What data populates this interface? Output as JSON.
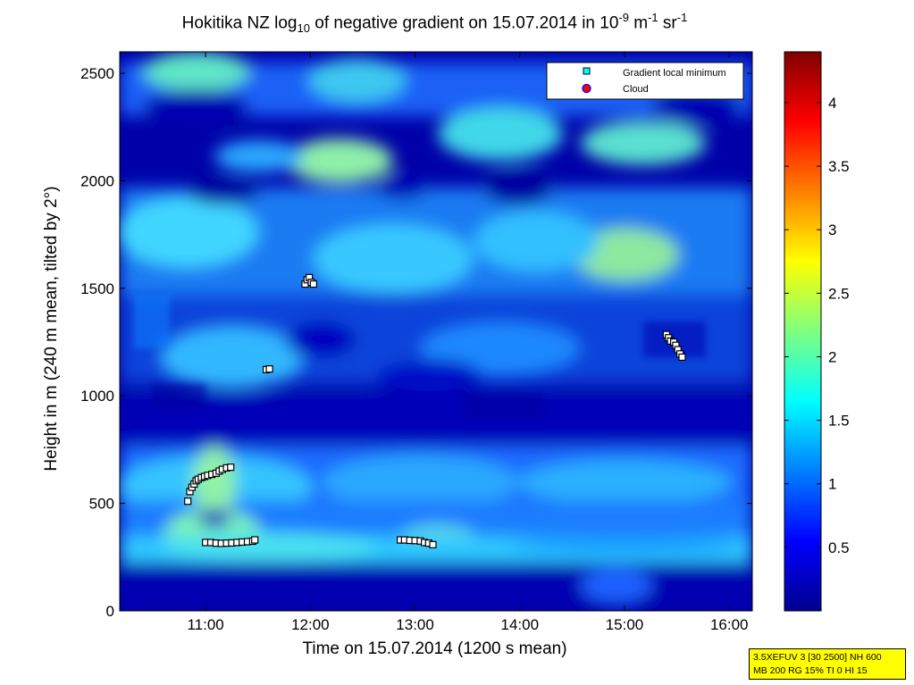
{
  "chart_data": {
    "type": "heatmap",
    "title": {
      "pre": "Hokitika NZ log",
      "sub": "10",
      "mid": " of negative gradient on 15.07.2014 in 10",
      "sup1": "-9",
      "m": " m",
      "sup2": "-1",
      "sr": " sr",
      "sup3": "-1"
    },
    "xlabel": "Time on 15.07.2014 (1200 s mean)",
    "ylabel": "Height in m (240 m mean, tilted by 2°)",
    "xlim": [
      10.18,
      16.22
    ],
    "ylim": [
      0,
      2600
    ],
    "xticks": [
      {
        "value": 11,
        "label": "11:00"
      },
      {
        "value": 12,
        "label": "12:00"
      },
      {
        "value": 13,
        "label": "13:00"
      },
      {
        "value": 14,
        "label": "14:00"
      },
      {
        "value": 15,
        "label": "15:00"
      },
      {
        "value": 16,
        "label": "16:00"
      }
    ],
    "yticks": [
      {
        "value": 0,
        "label": "0"
      },
      {
        "value": 500,
        "label": "500"
      },
      {
        "value": 1000,
        "label": "1000"
      },
      {
        "value": 1500,
        "label": "1500"
      },
      {
        "value": 2000,
        "label": "2000"
      },
      {
        "value": 2500,
        "label": "2500"
      }
    ],
    "colorbar": {
      "range": [
        0,
        4.4
      ],
      "ticks": [
        {
          "value": 0.5,
          "label": "0.5"
        },
        {
          "value": 1,
          "label": "1"
        },
        {
          "value": 1.5,
          "label": "1.5"
        },
        {
          "value": 2,
          "label": "2"
        },
        {
          "value": 2.5,
          "label": "2.5"
        },
        {
          "value": 3,
          "label": "3"
        },
        {
          "value": 3.5,
          "label": "3.5"
        },
        {
          "value": 4,
          "label": "4"
        }
      ]
    },
    "legend": {
      "placement": "top-right",
      "entries": [
        {
          "label": "Gradient local minimum",
          "marker": "square",
          "color": "#00ffff"
        },
        {
          "label": "Cloud",
          "marker": "circle",
          "color": "#ff0000"
        }
      ]
    },
    "series": [
      {
        "name": "Gradient local minimum",
        "points": [
          [
            10.83,
            510
          ],
          [
            10.85,
            555
          ],
          [
            10.87,
            575
          ],
          [
            10.89,
            590
          ],
          [
            10.91,
            605
          ],
          [
            10.93,
            612
          ],
          [
            10.96,
            620
          ],
          [
            10.99,
            625
          ],
          [
            11.02,
            630
          ],
          [
            11.06,
            635
          ],
          [
            11.1,
            640
          ],
          [
            11.13,
            650
          ],
          [
            11.16,
            658
          ],
          [
            11.2,
            665
          ],
          [
            11.24,
            668
          ],
          [
            11.0,
            318
          ],
          [
            11.05,
            318
          ],
          [
            11.1,
            315
          ],
          [
            11.15,
            314
          ],
          [
            11.2,
            315
          ],
          [
            11.25,
            316
          ],
          [
            11.3,
            318
          ],
          [
            11.35,
            320
          ],
          [
            11.4,
            322
          ],
          [
            11.45,
            324
          ],
          [
            11.47,
            330
          ],
          [
            11.58,
            1122
          ],
          [
            11.61,
            1125
          ],
          [
            11.95,
            1520
          ],
          [
            11.97,
            1540
          ],
          [
            11.99,
            1550
          ],
          [
            12.01,
            1528
          ],
          [
            12.03,
            1520
          ],
          [
            12.86,
            330
          ],
          [
            12.9,
            330
          ],
          [
            12.95,
            328
          ],
          [
            13.0,
            327
          ],
          [
            13.05,
            325
          ],
          [
            13.09,
            318
          ],
          [
            13.13,
            315
          ],
          [
            13.17,
            308
          ],
          [
            15.4,
            1285
          ],
          [
            15.42,
            1270
          ],
          [
            15.44,
            1255
          ],
          [
            15.47,
            1250
          ],
          [
            15.49,
            1235
          ],
          [
            15.51,
            1215
          ],
          [
            15.53,
            1195
          ],
          [
            15.55,
            1180
          ]
        ]
      }
    ],
    "field": {
      "description_levels": "log10 gradient field; background ~0.1, layers 1.2-2.2",
      "layers": [
        {
          "x": [
            10.18,
            16.22
          ],
          "y": [
            280,
            350
          ],
          "value": 1.3
        },
        {
          "x": [
            10.18,
            16.22
          ],
          "y": [
            350,
            480
          ],
          "value": 1.25
        },
        {
          "x": [
            10.18,
            16.22
          ],
          "y": [
            1500,
            1900
          ],
          "value": 1.2
        },
        {
          "x": [
            10.18,
            16.22
          ],
          "y": [
            2050,
            2550
          ],
          "value": 1.3
        }
      ]
    },
    "grid": false
  },
  "infobox": {
    "line1": "3.5XEFUV 3 [30 2500] NH 600",
    "line2": "MB 200 RG 15% TI 0 HI 15"
  }
}
